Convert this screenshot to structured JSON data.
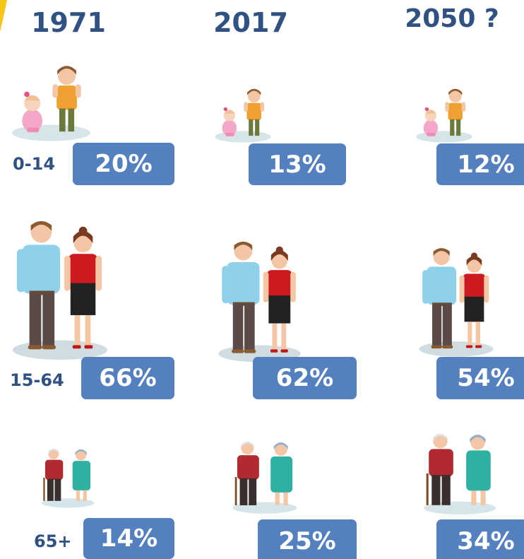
{
  "header": {
    "years": [
      "1971",
      "2017",
      "2050 ?"
    ]
  },
  "rows": [
    {
      "label": "0-14",
      "values": [
        "20%",
        "13%",
        "12%"
      ]
    },
    {
      "label": "15-64",
      "values": [
        "66%",
        "62%",
        "54%"
      ]
    },
    {
      "label": "65+",
      "values": [
        "14%",
        "25%",
        "34%"
      ]
    }
  ]
}
